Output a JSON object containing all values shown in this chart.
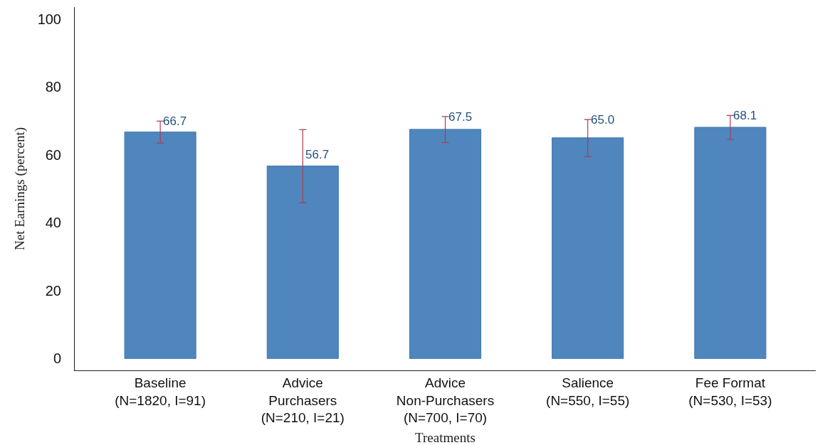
{
  "chart_data": {
    "type": "bar",
    "xlabel": "Treatments",
    "ylabel": "Net Earnings (percent)",
    "categories": [
      "Baseline\n(N=1820, I=91)",
      "Advice\nPurchasers\n(N=210, I=21)",
      "Advice\nNon-Purchasers\n(N=700, I=70)",
      "Salience\n(N=550, I=55)",
      "Fee Format\n(N=530, I=53)"
    ],
    "values": [
      66.7,
      56.7,
      67.5,
      65.0,
      68.1
    ],
    "value_labels": [
      "66.7",
      "56.7",
      "67.5",
      "65.0",
      "68.1"
    ],
    "errors": [
      [
        63.5,
        69.9
      ],
      [
        45.9,
        67.4
      ],
      [
        63.6,
        71.3
      ],
      [
        59.5,
        70.4
      ],
      [
        64.5,
        71.6
      ]
    ],
    "color": "#4f86bd",
    "ylim": [
      -3.5,
      103.5
    ],
    "yticks": [
      0,
      20,
      40,
      60,
      80,
      100
    ]
  }
}
